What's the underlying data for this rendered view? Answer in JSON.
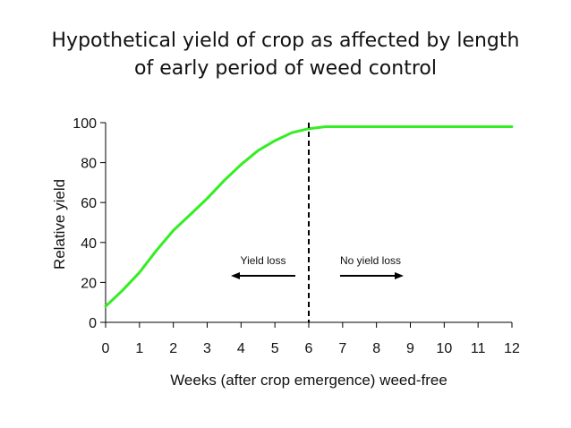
{
  "chart_data": {
    "type": "line",
    "title_line1": "Hypothetical yield of crop as affected by length",
    "title_line2": "of early period of weed control",
    "xlabel": "Weeks (after crop emergence) weed-free",
    "ylabel": "Relative yield",
    "xlim": [
      0,
      12
    ],
    "ylim": [
      0,
      100
    ],
    "x_ticks": [
      0,
      1,
      2,
      3,
      4,
      5,
      6,
      7,
      8,
      9,
      10,
      11,
      12
    ],
    "y_ticks": [
      0,
      20,
      40,
      60,
      80,
      100
    ],
    "series": [
      {
        "color": "#33ee22",
        "x": [
          0,
          0.5,
          1,
          1.5,
          2,
          2.5,
          3,
          3.5,
          4,
          4.5,
          5,
          5.5,
          6,
          6.5,
          7,
          8,
          9,
          10,
          11,
          12
        ],
        "y": [
          8,
          16,
          25,
          36,
          46,
          54,
          62,
          71,
          79,
          86,
          91,
          95,
          97,
          98,
          98,
          98,
          98,
          98,
          98,
          98
        ]
      }
    ],
    "threshold": {
      "x": 6,
      "style": "dashed",
      "color": "#000000"
    },
    "annotations": {
      "left_label": "Yield loss",
      "right_label": "No yield loss"
    },
    "grid": false,
    "legend": "none"
  }
}
